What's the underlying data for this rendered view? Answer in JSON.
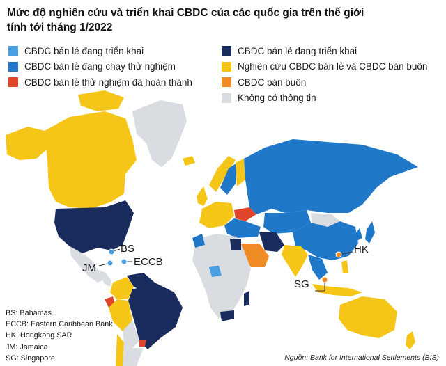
{
  "title_line1": "Mức độ nghiên cứu và triển khai CBDC của các quốc gia trên thế giới",
  "title_line2": "tính tới tháng 1/2022",
  "legend_left": [
    {
      "label": "CBDC bán lẻ đang triển khai",
      "color": "#4a9fe0"
    },
    {
      "label": "CBDC bán lẻ đang chạy thử nghiệm",
      "color": "#1f78c8"
    },
    {
      "label": "CBDC bán lẻ thử nghiệm đã hoàn thành",
      "color": "#e0452b"
    }
  ],
  "legend_right": [
    {
      "label": "CBDC bán lẻ đang triển khai",
      "color": "#1a2b5e"
    },
    {
      "label": "Nghiên cứu CBDC bán lẻ và CBDC bán buôn",
      "color": "#f5c518"
    },
    {
      "label": "CBDC bán buôn",
      "color": "#f08a24"
    },
    {
      "label": "Không có thông tin",
      "color": "#d9dde2"
    }
  ],
  "map_labels": {
    "bs": "BS",
    "jm": "JM",
    "eccb": "ECCB",
    "hk": "HK",
    "sg": "SG"
  },
  "abbreviations": [
    "BS: Bahamas",
    "ECCB: Eastern Caribbean Bank",
    "HK: Hongkong SAR",
    "JM: Jamaica",
    "SG: Singapore"
  ],
  "source": "Nguồn: Bank for International Settlements (BIS)"
}
